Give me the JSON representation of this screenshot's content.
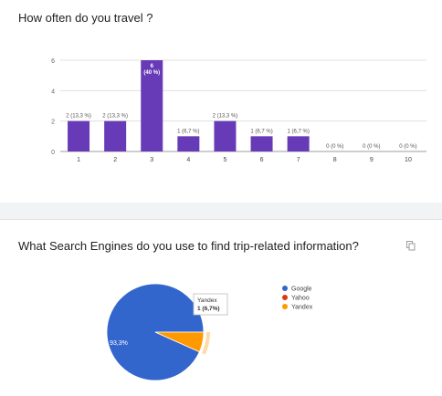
{
  "questions": [
    {
      "title": "How often do you travel ?"
    },
    {
      "title": "What Search Engines do you use to find trip-related information?"
    }
  ],
  "colors": {
    "bar": "#673ab7",
    "google": "#3366cc",
    "yahoo": "#dc3912",
    "yandex": "#ff9900",
    "grid": "#e0e0e0",
    "axis": "#9e9e9e"
  },
  "icons": {
    "copy": "copy-icon"
  },
  "chart_data": [
    {
      "type": "bar",
      "categories": [
        "1",
        "2",
        "3",
        "4",
        "5",
        "6",
        "7",
        "8",
        "9",
        "10"
      ],
      "values": [
        2,
        2,
        6,
        1,
        2,
        1,
        1,
        0,
        0,
        0
      ],
      "data_labels": [
        "2 (13,3 %)",
        "2 (13,3 %)",
        "6 (40 %)",
        "1 (6,7 %)",
        "2 (13,3 %)",
        "1 (6,7 %)",
        "1 (6,7 %)",
        "0 (0 %)",
        "0 (0 %)",
        "0 (0 %)"
      ],
      "inside_label": {
        "index": 2,
        "line1": "6",
        "line2": "(40 %)"
      },
      "yticks": [
        0,
        2,
        4,
        6
      ],
      "ylim": [
        0,
        6
      ],
      "grid": true
    },
    {
      "type": "pie",
      "labels": [
        "Google",
        "Yahoo",
        "Yandex"
      ],
      "values": [
        93.3,
        0,
        6.7
      ],
      "slice_labels": [
        "93,3%",
        "",
        ""
      ],
      "tooltip": {
        "label": "Yandex",
        "value": "1 (6,7%)"
      },
      "legend": "right"
    }
  ]
}
